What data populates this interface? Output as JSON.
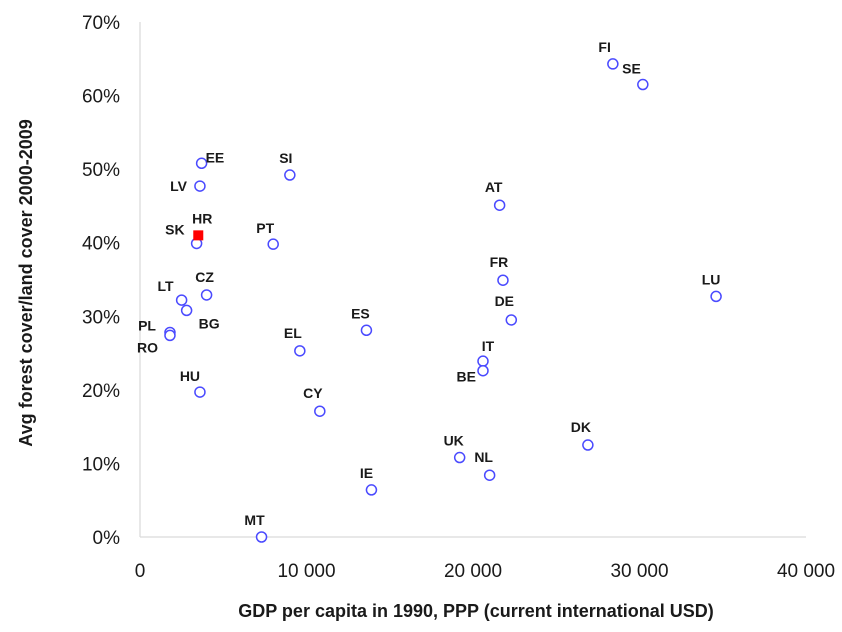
{
  "chart_data": {
    "type": "scatter",
    "xlabel": "GDP per capita in 1990, PPP (current international USD)",
    "ylabel": "Avg forest cover/land cover 2000-2009",
    "xlim": [
      0,
      40000
    ],
    "ylim": [
      0,
      70
    ],
    "x_ticks": [
      "0",
      "10 000",
      "20 000",
      "30 000",
      "40 000"
    ],
    "y_ticks": [
      "0%",
      "10%",
      "20%",
      "30%",
      "40%",
      "50%",
      "60%",
      "70%"
    ],
    "grid": false,
    "legend": "none",
    "colors": {
      "marker": "#4a4aff",
      "highlight": "#ff0000"
    },
    "points": [
      {
        "label": "FI",
        "x": 28400,
        "y": 64.3
      },
      {
        "label": "SE",
        "x": 30200,
        "y": 61.5
      },
      {
        "label": "EE",
        "x": 3700,
        "y": 50.8
      },
      {
        "label": "SI",
        "x": 9000,
        "y": 49.2
      },
      {
        "label": "LV",
        "x": 3600,
        "y": 47.7
      },
      {
        "label": "AT",
        "x": 21600,
        "y": 45.1
      },
      {
        "label": "SK",
        "x": 3400,
        "y": 39.9
      },
      {
        "label": "PT",
        "x": 8000,
        "y": 39.8
      },
      {
        "label": "FR",
        "x": 21800,
        "y": 34.9
      },
      {
        "label": "CZ",
        "x": 4000,
        "y": 32.9
      },
      {
        "label": "LU",
        "x": 34600,
        "y": 32.7
      },
      {
        "label": "LT",
        "x": 2500,
        "y": 32.2
      },
      {
        "label": "BG",
        "x": 2800,
        "y": 30.8
      },
      {
        "label": "DE",
        "x": 22300,
        "y": 29.5
      },
      {
        "label": "ES",
        "x": 13600,
        "y": 28.1
      },
      {
        "label": "PL",
        "x": 1800,
        "y": 27.8
      },
      {
        "label": "RO",
        "x": 1800,
        "y": 27.4
      },
      {
        "label": "EL",
        "x": 9600,
        "y": 25.3
      },
      {
        "label": "IT",
        "x": 20600,
        "y": 23.9
      },
      {
        "label": "BE",
        "x": 20600,
        "y": 22.6
      },
      {
        "label": "HU",
        "x": 3600,
        "y": 19.7
      },
      {
        "label": "CY",
        "x": 10800,
        "y": 17.1
      },
      {
        "label": "DK",
        "x": 26900,
        "y": 12.5
      },
      {
        "label": "UK",
        "x": 19200,
        "y": 10.8
      },
      {
        "label": "NL",
        "x": 21000,
        "y": 8.4
      },
      {
        "label": "IE",
        "x": 13900,
        "y": 6.4
      },
      {
        "label": "MT",
        "x": 7300,
        "y": 0.0
      }
    ],
    "highlight_points": [
      {
        "label": "HR",
        "x": 3500,
        "y": 41.0
      }
    ]
  }
}
